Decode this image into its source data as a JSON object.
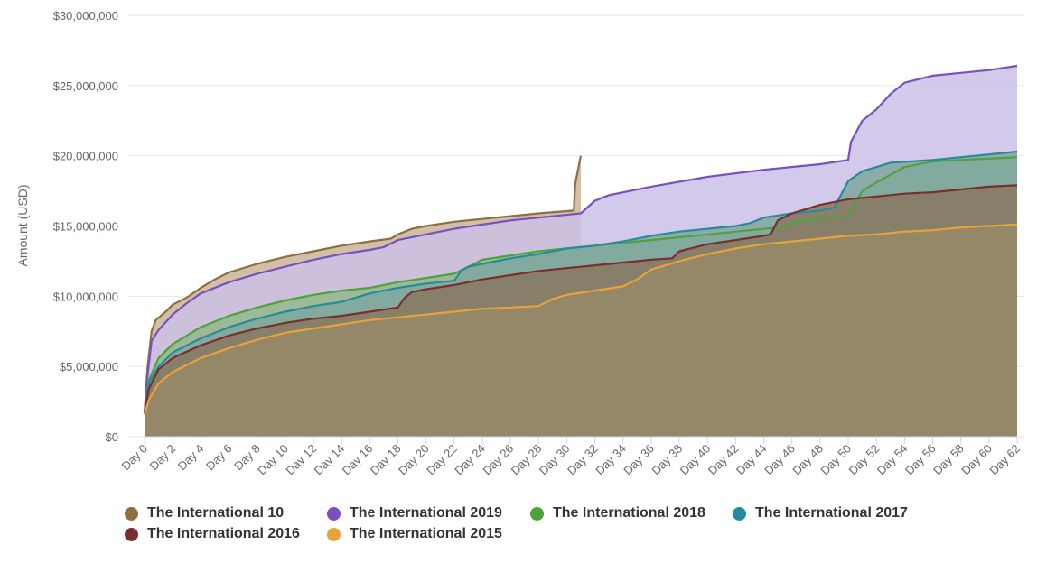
{
  "chart_data": {
    "type": "area",
    "title": "",
    "ylabel": "Amount (USD)",
    "xlabel": "",
    "ylim": [
      0,
      30000000
    ],
    "xlim": [
      0,
      62
    ],
    "grid": true,
    "legend_position": "bottom",
    "y_ticks": [
      {
        "value": 0,
        "label": "$0"
      },
      {
        "value": 5000000,
        "label": "$5,000,000"
      },
      {
        "value": 10000000,
        "label": "$10,000,000"
      },
      {
        "value": 15000000,
        "label": "$15,000,000"
      },
      {
        "value": 20000000,
        "label": "$20,000,000"
      },
      {
        "value": 25000000,
        "label": "$25,000,000"
      },
      {
        "value": 30000000,
        "label": "$30,000,000"
      }
    ],
    "x_ticks": [
      {
        "value": 0,
        "label": "Day 0"
      },
      {
        "value": 2,
        "label": "Day 2"
      },
      {
        "value": 4,
        "label": "Day 4"
      },
      {
        "value": 6,
        "label": "Day 6"
      },
      {
        "value": 8,
        "label": "Day 8"
      },
      {
        "value": 10,
        "label": "Day 10"
      },
      {
        "value": 12,
        "label": "Day 12"
      },
      {
        "value": 14,
        "label": "Day 14"
      },
      {
        "value": 16,
        "label": "Day 16"
      },
      {
        "value": 18,
        "label": "Day 18"
      },
      {
        "value": 20,
        "label": "Day 20"
      },
      {
        "value": 22,
        "label": "Day 22"
      },
      {
        "value": 24,
        "label": "Day 24"
      },
      {
        "value": 26,
        "label": "Day 26"
      },
      {
        "value": 28,
        "label": "Day 28"
      },
      {
        "value": 30,
        "label": "Day 30"
      },
      {
        "value": 32,
        "label": "Day 32"
      },
      {
        "value": 34,
        "label": "Day 34"
      },
      {
        "value": 36,
        "label": "Day 36"
      },
      {
        "value": 38,
        "label": "Day 38"
      },
      {
        "value": 40,
        "label": "Day 40"
      },
      {
        "value": 42,
        "label": "Day 42"
      },
      {
        "value": 44,
        "label": "Day 44"
      },
      {
        "value": 46,
        "label": "Day 46"
      },
      {
        "value": 48,
        "label": "Day 48"
      },
      {
        "value": 50,
        "label": "Day 50"
      },
      {
        "value": 52,
        "label": "Day 52"
      },
      {
        "value": 54,
        "label": "Day 54"
      },
      {
        "value": 56,
        "label": "Day 56"
      },
      {
        "value": 58,
        "label": "Day 58"
      },
      {
        "value": 60,
        "label": "Day 60"
      },
      {
        "value": 62,
        "label": "Day 62"
      }
    ],
    "series": [
      {
        "name": "The International 10",
        "color": "#8f6f41",
        "fill": "#c9b596",
        "points": [
          [
            0,
            1600000
          ],
          [
            0.2,
            4800000
          ],
          [
            0.5,
            7500000
          ],
          [
            0.8,
            8300000
          ],
          [
            1.5,
            8900000
          ],
          [
            2,
            9400000
          ],
          [
            3,
            9900000
          ],
          [
            4,
            10600000
          ],
          [
            5,
            11200000
          ],
          [
            6,
            11700000
          ],
          [
            8,
            12300000
          ],
          [
            10,
            12800000
          ],
          [
            12,
            13200000
          ],
          [
            14,
            13600000
          ],
          [
            16,
            13900000
          ],
          [
            17.5,
            14100000
          ],
          [
            18,
            14400000
          ],
          [
            19,
            14800000
          ],
          [
            20,
            15000000
          ],
          [
            22,
            15300000
          ],
          [
            24,
            15500000
          ],
          [
            26,
            15700000
          ],
          [
            28,
            15900000
          ],
          [
            30.5,
            16100000
          ],
          [
            30.6,
            18000000
          ],
          [
            30.9,
            19500000
          ],
          [
            31,
            20000000
          ]
        ]
      },
      {
        "name": "The International 2019",
        "color": "#7a4fbf",
        "fill": "#cbbfe6",
        "points": [
          [
            0,
            1600000
          ],
          [
            0.2,
            4200000
          ],
          [
            0.5,
            6800000
          ],
          [
            1,
            7600000
          ],
          [
            2,
            8700000
          ],
          [
            3,
            9500000
          ],
          [
            4,
            10200000
          ],
          [
            6,
            11000000
          ],
          [
            8,
            11600000
          ],
          [
            10,
            12100000
          ],
          [
            12,
            12600000
          ],
          [
            14,
            13000000
          ],
          [
            16,
            13300000
          ],
          [
            17,
            13500000
          ],
          [
            18,
            14000000
          ],
          [
            20,
            14400000
          ],
          [
            22,
            14800000
          ],
          [
            24,
            15100000
          ],
          [
            26,
            15400000
          ],
          [
            28,
            15600000
          ],
          [
            31,
            15900000
          ],
          [
            32,
            16800000
          ],
          [
            33,
            17200000
          ],
          [
            36,
            17800000
          ],
          [
            40,
            18500000
          ],
          [
            44,
            19000000
          ],
          [
            48,
            19400000
          ],
          [
            50,
            19700000
          ],
          [
            50.2,
            21000000
          ],
          [
            51,
            22500000
          ],
          [
            52,
            23300000
          ],
          [
            53,
            24400000
          ],
          [
            54,
            25200000
          ],
          [
            56,
            25700000
          ],
          [
            58,
            25900000
          ],
          [
            60,
            26100000
          ],
          [
            62,
            26400000
          ]
        ]
      },
      {
        "name": "The International 2018",
        "color": "#4fa23a",
        "fill": "#93b889",
        "points": [
          [
            0,
            1600000
          ],
          [
            0.3,
            4000000
          ],
          [
            1,
            5600000
          ],
          [
            2,
            6600000
          ],
          [
            4,
            7800000
          ],
          [
            6,
            8600000
          ],
          [
            8,
            9200000
          ],
          [
            10,
            9700000
          ],
          [
            12,
            10100000
          ],
          [
            14,
            10400000
          ],
          [
            16,
            10600000
          ],
          [
            18,
            11000000
          ],
          [
            20,
            11300000
          ],
          [
            22,
            11600000
          ],
          [
            24,
            12600000
          ],
          [
            26,
            12900000
          ],
          [
            28,
            13200000
          ],
          [
            30,
            13400000
          ],
          [
            32,
            13600000
          ],
          [
            34,
            13800000
          ],
          [
            36,
            14000000
          ],
          [
            38,
            14200000
          ],
          [
            40,
            14400000
          ],
          [
            42,
            14600000
          ],
          [
            45,
            14900000
          ],
          [
            46,
            15200000
          ],
          [
            48,
            15500000
          ],
          [
            50,
            15700000
          ],
          [
            51,
            17500000
          ],
          [
            52,
            18100000
          ],
          [
            54,
            19200000
          ],
          [
            56,
            19600000
          ],
          [
            58,
            19700000
          ],
          [
            60,
            19800000
          ],
          [
            62,
            19900000
          ]
        ]
      },
      {
        "name": "The International 2017",
        "color": "#268b9a",
        "fill": "#7fa7a0",
        "points": [
          [
            0,
            1600000
          ],
          [
            0.3,
            3800000
          ],
          [
            1,
            5000000
          ],
          [
            2,
            6000000
          ],
          [
            4,
            7000000
          ],
          [
            6,
            7800000
          ],
          [
            8,
            8400000
          ],
          [
            10,
            8900000
          ],
          [
            12,
            9300000
          ],
          [
            14,
            9600000
          ],
          [
            16,
            10200000
          ],
          [
            18,
            10600000
          ],
          [
            20,
            10900000
          ],
          [
            22,
            11100000
          ],
          [
            22.5,
            11800000
          ],
          [
            23,
            12100000
          ],
          [
            24,
            12300000
          ],
          [
            26,
            12700000
          ],
          [
            28,
            13000000
          ],
          [
            30,
            13400000
          ],
          [
            32,
            13600000
          ],
          [
            34,
            13900000
          ],
          [
            36,
            14300000
          ],
          [
            38,
            14600000
          ],
          [
            40,
            14800000
          ],
          [
            42,
            15000000
          ],
          [
            43,
            15200000
          ],
          [
            44,
            15600000
          ],
          [
            46,
            15900000
          ],
          [
            48,
            16100000
          ],
          [
            49,
            16300000
          ],
          [
            50,
            18200000
          ],
          [
            51,
            18900000
          ],
          [
            53,
            19500000
          ],
          [
            56,
            19700000
          ],
          [
            59,
            20000000
          ],
          [
            62,
            20300000
          ]
        ]
      },
      {
        "name": "The International 2016",
        "color": "#7a2f2f",
        "fill": "#8a7860",
        "points": [
          [
            0,
            1600000
          ],
          [
            0.3,
            3400000
          ],
          [
            1,
            4800000
          ],
          [
            2,
            5600000
          ],
          [
            4,
            6500000
          ],
          [
            6,
            7200000
          ],
          [
            8,
            7700000
          ],
          [
            10,
            8100000
          ],
          [
            12,
            8400000
          ],
          [
            14,
            8600000
          ],
          [
            16,
            8900000
          ],
          [
            18,
            9200000
          ],
          [
            18.5,
            9900000
          ],
          [
            19,
            10300000
          ],
          [
            20,
            10500000
          ],
          [
            22,
            10800000
          ],
          [
            24,
            11200000
          ],
          [
            26,
            11500000
          ],
          [
            28,
            11800000
          ],
          [
            30,
            12000000
          ],
          [
            32,
            12200000
          ],
          [
            34,
            12400000
          ],
          [
            36,
            12600000
          ],
          [
            37.5,
            12700000
          ],
          [
            38,
            13200000
          ],
          [
            40,
            13700000
          ],
          [
            42,
            14000000
          ],
          [
            44,
            14300000
          ],
          [
            44.5,
            14400000
          ],
          [
            45,
            15400000
          ],
          [
            46,
            15900000
          ],
          [
            48,
            16500000
          ],
          [
            50,
            16900000
          ],
          [
            52,
            17100000
          ],
          [
            54,
            17300000
          ],
          [
            56,
            17400000
          ],
          [
            58,
            17600000
          ],
          [
            60,
            17800000
          ],
          [
            62,
            17900000
          ]
        ]
      },
      {
        "name": "The International 2015",
        "color": "#e8a23a",
        "fill": "#968968",
        "points": [
          [
            0,
            1600000
          ],
          [
            0.3,
            2600000
          ],
          [
            1,
            3800000
          ],
          [
            2,
            4600000
          ],
          [
            4,
            5600000
          ],
          [
            6,
            6300000
          ],
          [
            8,
            6900000
          ],
          [
            10,
            7400000
          ],
          [
            12,
            7700000
          ],
          [
            14,
            8000000
          ],
          [
            16,
            8300000
          ],
          [
            18,
            8500000
          ],
          [
            20,
            8700000
          ],
          [
            22,
            8900000
          ],
          [
            24,
            9100000
          ],
          [
            26,
            9200000
          ],
          [
            28,
            9300000
          ],
          [
            29,
            9800000
          ],
          [
            30,
            10100000
          ],
          [
            32,
            10400000
          ],
          [
            34,
            10700000
          ],
          [
            35,
            11200000
          ],
          [
            36,
            11900000
          ],
          [
            38,
            12500000
          ],
          [
            40,
            13000000
          ],
          [
            42,
            13400000
          ],
          [
            44,
            13700000
          ],
          [
            46,
            13900000
          ],
          [
            48,
            14100000
          ],
          [
            50,
            14300000
          ],
          [
            52,
            14400000
          ],
          [
            54,
            14600000
          ],
          [
            56,
            14700000
          ],
          [
            58,
            14900000
          ],
          [
            60,
            15000000
          ],
          [
            62,
            15100000
          ]
        ]
      }
    ]
  },
  "legend": {
    "items": [
      {
        "label": "The International 10",
        "color": "#8f6f41"
      },
      {
        "label": "The International 2019",
        "color": "#7a4fbf"
      },
      {
        "label": "The International 2018",
        "color": "#4fa23a"
      },
      {
        "label": "The International 2017",
        "color": "#268b9a"
      },
      {
        "label": "The International 2016",
        "color": "#7a2f2f"
      },
      {
        "label": "The International 2015",
        "color": "#e8a23a"
      }
    ]
  }
}
